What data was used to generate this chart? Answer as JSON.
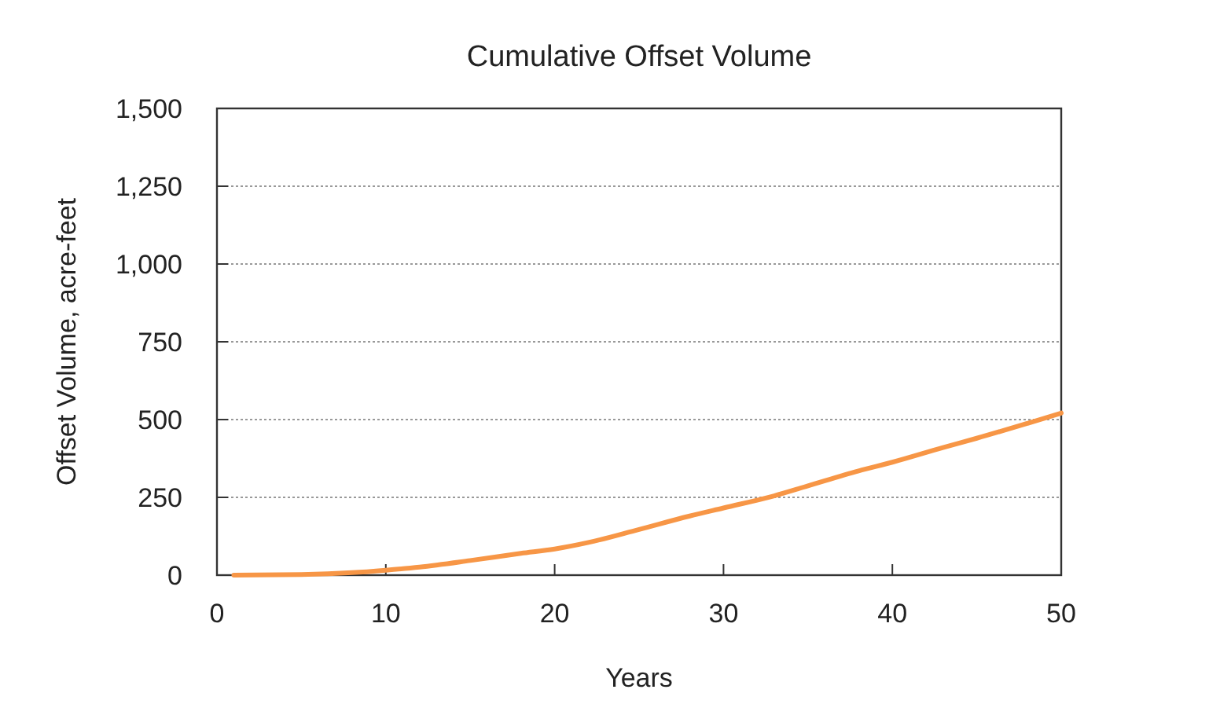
{
  "chart_data": {
    "type": "line",
    "title": "Cumulative Offset Volume",
    "xlabel": "Years",
    "ylabel": "Offset Volume, acre-feet",
    "x": [
      1,
      5,
      8,
      10,
      12,
      15,
      18,
      20,
      22,
      25,
      28,
      30,
      33,
      35,
      38,
      40,
      43,
      45,
      48,
      50
    ],
    "series": [
      {
        "color": "#f79646",
        "values": [
          0,
          2,
          8,
          16,
          26,
          47,
          70,
          84,
          105,
          147,
          190,
          216,
          255,
          287,
          335,
          363,
          410,
          440,
          488,
          521
        ]
      }
    ],
    "xlim": [
      0,
      50
    ],
    "xticks": [
      0,
      10,
      20,
      30,
      40,
      50
    ],
    "ylim": [
      0,
      1500
    ],
    "yticks": [
      {
        "value": 0,
        "label": "0"
      },
      {
        "value": 250,
        "label": "250"
      },
      {
        "value": 500,
        "label": "500"
      },
      {
        "value": 750,
        "label": "750"
      },
      {
        "value": 1000,
        "label": "1,000"
      },
      {
        "value": 1250,
        "label": "1,250"
      },
      {
        "value": 1500,
        "label": "1,500"
      }
    ],
    "grid": "y",
    "marker": "none",
    "line_style": "solid"
  }
}
